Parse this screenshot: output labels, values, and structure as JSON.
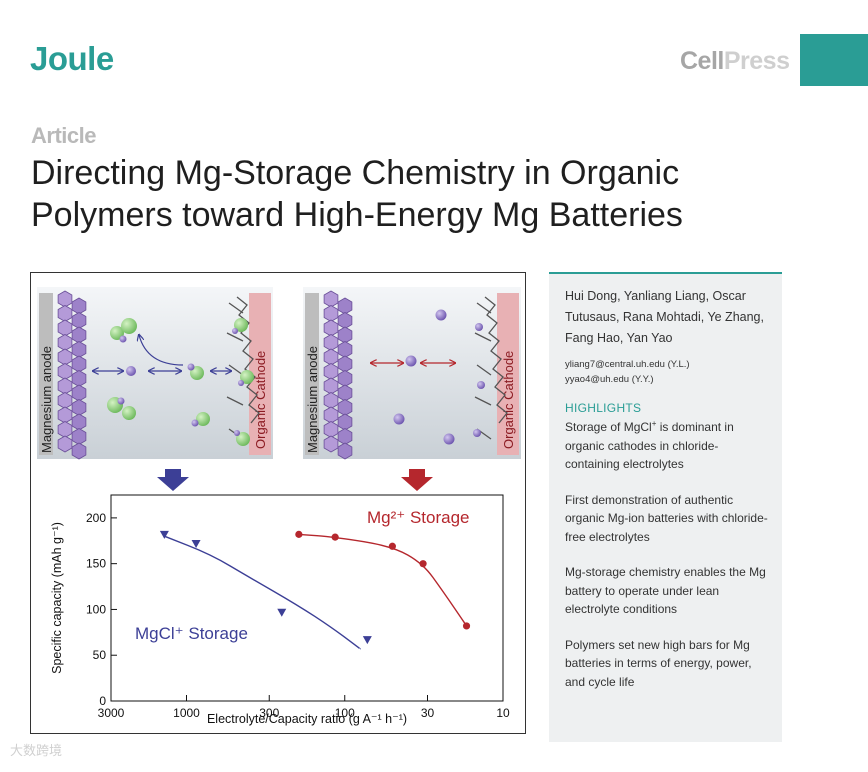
{
  "header": {
    "journal": "Joule",
    "publisher_part1": "Cell",
    "publisher_part2": "Press",
    "accent_color": "#2a9d95"
  },
  "article": {
    "type": "Article",
    "title_line1": "Directing Mg-Storage Chemistry in Organic",
    "title_line2": "Polymers toward High-Energy Mg Batteries"
  },
  "figure": {
    "left_panel": {
      "anode_label": "Magnesium anode",
      "cathode_label": "Organic Cathode"
    },
    "right_panel": {
      "anode_label": "Magnesium anode",
      "cathode_label": "Organic Cathode"
    },
    "colors": {
      "mgcl_series": "#3c3f96",
      "mg2_series": "#b5272d",
      "mg_ion": "#8a72c4",
      "cl": "#8fd17a"
    }
  },
  "chart_data": {
    "type": "line",
    "xlabel": "Electrolyte/Capacity ratio (g A⁻¹ h⁻¹)",
    "ylabel": "Specific capacity (mAh g⁻¹)",
    "x_scale": "log",
    "x_reversed": true,
    "xlim": [
      3000,
      10
    ],
    "ylim": [
      0,
      225
    ],
    "x_tick_labels": [
      "3000",
      "1000",
      "300",
      "100",
      "30",
      "10"
    ],
    "x_ticks": [
      3000,
      1000,
      300,
      100,
      30,
      10
    ],
    "y_ticks": [
      0,
      50,
      100,
      150,
      200
    ],
    "y_tick_labels": [
      "0",
      "50",
      "100",
      "150",
      "200"
    ],
    "series": [
      {
        "name": "MgCl⁺ Storage",
        "marker": "triangle-down",
        "color": "#3c3f96",
        "points": [
          [
            1380,
            182
          ],
          [
            870,
            172
          ],
          [
            250,
            97
          ],
          [
            72,
            67
          ]
        ],
        "fit": [
          [
            1380,
            180
          ],
          [
            700,
            160
          ],
          [
            400,
            135
          ],
          [
            200,
            105
          ],
          [
            120,
            80
          ],
          [
            80,
            57
          ]
        ]
      },
      {
        "name": "Mg²⁺ Storage",
        "marker": "circle",
        "color": "#b5272d",
        "points": [
          [
            195,
            182
          ],
          [
            115,
            179
          ],
          [
            50,
            169
          ],
          [
            32,
            150
          ],
          [
            17,
            82
          ]
        ],
        "fit": [
          [
            195,
            182
          ],
          [
            115,
            179
          ],
          [
            50,
            169
          ],
          [
            32,
            150
          ],
          [
            24,
            120
          ],
          [
            17,
            82
          ]
        ]
      }
    ]
  },
  "sidebar": {
    "authors": "Hui Dong, Yanliang Liang, Oscar Tutusaus, Rana Mohtadi, Ye Zhang, Fang Hao, Yan Yao",
    "email1": "yliang7@central.uh.edu (Y.L.)",
    "email2": "yyao4@uh.edu (Y.Y.)",
    "highlights_heading": "HIGHLIGHTS",
    "highlight1_pre": "Storage of MgCl",
    "highlight1_sup": "+",
    "highlight1_post": " is dominant in organic cathodes in chloride-containing electrolytes",
    "highlight2": "First demonstration of authentic organic Mg-ion batteries with chloride-free electrolytes",
    "highlight3": "Mg-storage chemistry enables the Mg battery to operate under lean electrolyte conditions",
    "highlight4": "Polymers set new high bars for Mg batteries in terms of energy, power, and cycle life"
  },
  "watermark": "大数跨境"
}
